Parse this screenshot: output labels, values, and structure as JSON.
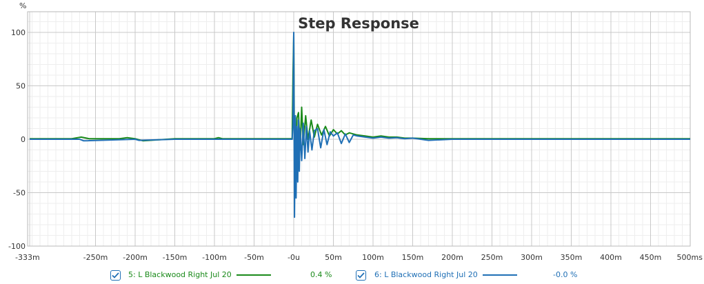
{
  "chart_data": {
    "type": "line",
    "title": "Step Response",
    "y_unit": "%",
    "x_unit": "",
    "xlim": [
      -333,
      500
    ],
    "ylim": [
      -100,
      110
    ],
    "x_ticks": [
      {
        "v": -333,
        "label": "-333m"
      },
      {
        "v": -250,
        "label": "-250m"
      },
      {
        "v": -200,
        "label": "-200m"
      },
      {
        "v": -150,
        "label": "-150m"
      },
      {
        "v": -100,
        "label": "-100m"
      },
      {
        "v": -50,
        "label": "-50m"
      },
      {
        "v": 0,
        "label": "-0u"
      },
      {
        "v": 50,
        "label": "50m"
      },
      {
        "v": 100,
        "label": "100m"
      },
      {
        "v": 150,
        "label": "150m"
      },
      {
        "v": 200,
        "label": "200m"
      },
      {
        "v": 250,
        "label": "250m"
      },
      {
        "v": 300,
        "label": "300m"
      },
      {
        "v": 350,
        "label": "350m"
      },
      {
        "v": 400,
        "label": "400m"
      },
      {
        "v": 450,
        "label": "450m"
      },
      {
        "v": 500,
        "label": "500ms"
      }
    ],
    "y_ticks": [
      {
        "v": 100,
        "label": "100"
      },
      {
        "v": 50,
        "label": "50"
      },
      {
        "v": 0,
        "label": "0"
      },
      {
        "v": -50,
        "label": "-50"
      },
      {
        "v": -100,
        "label": "-100"
      }
    ],
    "x_minor_step": 10,
    "y_minor_step": 10,
    "grid": true,
    "series": [
      {
        "name": "5: L Blackwood Right Jul 20",
        "color": "#1a8a1a",
        "value_label": "0.4 %",
        "checked": true,
        "x": [
          -333,
          -280,
          -268,
          -258,
          -220,
          -210,
          -200,
          -190,
          -150,
          -100,
          -95,
          -90,
          -20,
          -2,
          -1,
          0,
          1,
          2,
          3,
          4,
          6,
          8,
          10,
          12,
          15,
          18,
          22,
          26,
          30,
          35,
          40,
          45,
          50,
          55,
          60,
          65,
          70,
          75,
          80,
          90,
          100,
          110,
          120,
          130,
          140,
          150,
          170,
          200,
          250,
          300,
          350,
          400,
          450,
          500
        ],
        "y": [
          0.5,
          0.5,
          2,
          0.5,
          0.5,
          1.5,
          0.5,
          -1.5,
          0.5,
          0.5,
          1.5,
          0.5,
          0.5,
          0.5,
          60,
          98,
          -20,
          10,
          -30,
          20,
          25,
          -10,
          30,
          -5,
          22,
          0,
          18,
          2,
          14,
          4,
          12,
          3,
          9,
          5,
          8,
          4,
          6,
          5,
          4,
          3,
          2,
          3,
          2,
          2,
          1,
          1,
          0.5,
          0.5,
          0.5,
          0.5,
          0.5,
          0.5,
          0.5,
          0.5
        ]
      },
      {
        "name": "6: L Blackwood Right Jul 20",
        "color": "#1f6fb5",
        "value_label": "-0.0 %",
        "checked": true,
        "x": [
          -333,
          -270,
          -265,
          -200,
          -195,
          -150,
          -100,
          -60,
          -20,
          -2,
          -1,
          0,
          1,
          2,
          3,
          4,
          5,
          6,
          7,
          8,
          10,
          12,
          14,
          16,
          18,
          20,
          23,
          26,
          30,
          34,
          38,
          42,
          46,
          50,
          55,
          60,
          65,
          70,
          75,
          80,
          90,
          100,
          110,
          120,
          130,
          140,
          150,
          170,
          200,
          250,
          300,
          350,
          400,
          450,
          500
        ],
        "y": [
          0,
          0,
          -1.5,
          0,
          -1,
          0,
          0,
          0,
          0,
          0,
          15,
          100,
          -73,
          22,
          -55,
          12,
          -40,
          18,
          -30,
          10,
          -20,
          15,
          -18,
          12,
          -12,
          8,
          -10,
          8,
          10,
          -8,
          9,
          -5,
          7,
          3,
          6,
          -4,
          5,
          -3,
          4,
          3,
          2,
          1,
          2,
          1,
          1.5,
          0.5,
          1,
          -1,
          0,
          0,
          0,
          0,
          0,
          0,
          0
        ]
      }
    ]
  }
}
